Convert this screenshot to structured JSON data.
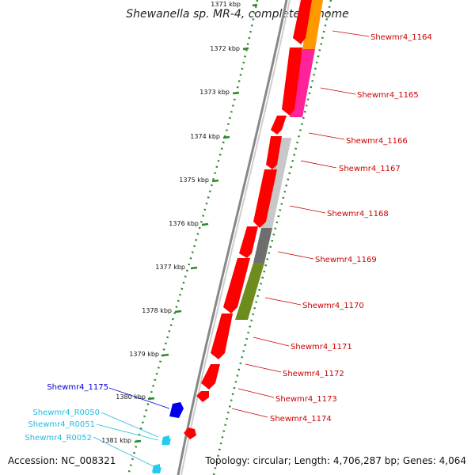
{
  "title": "Shewanella sp. MR-4, complete genome",
  "accession": "Accession: NC_008321",
  "topology": "Topology: circular; Length: 4,706,287 bp; Genes: 4,064",
  "ticks": [
    "1371 kbp",
    "1372 kbp",
    "1373 kbp",
    "1374 kbp",
    "1375 kbp",
    "1376 kbp",
    "1377 kbp",
    "1378 kbp",
    "1379 kbp",
    "1380 kbp",
    "1381 kbp"
  ],
  "genes_right": [
    {
      "label": "Shewmr4_1164",
      "color": "#cc0000"
    },
    {
      "label": "Shewmr4_1165",
      "color": "#cc0000"
    },
    {
      "label": "Shewmr4_1166",
      "color": "#cc0000"
    },
    {
      "label": "Shewmr4_1167",
      "color": "#cc0000"
    },
    {
      "label": "Shewmr4_1168",
      "color": "#cc0000"
    },
    {
      "label": "Shewmr4_1169",
      "color": "#cc0000"
    },
    {
      "label": "Shewmr4_1170",
      "color": "#cc0000"
    },
    {
      "label": "Shewmr4_1171",
      "color": "#cc0000"
    },
    {
      "label": "Shewmr4_1172",
      "color": "#cc0000"
    },
    {
      "label": "Shewmr4_1173",
      "color": "#cc0000"
    },
    {
      "label": "Shewmr4_1174",
      "color": "#cc0000"
    }
  ],
  "genes_left": [
    {
      "label": "Shewmr4_1175",
      "color": "#0000cc"
    },
    {
      "label": "Shewmr4_R0050",
      "color": "#22bbdd"
    },
    {
      "label": "Shewmr4_R0051",
      "color": "#22bbdd"
    },
    {
      "label": "Shewmr4_R0052",
      "color": "#22bbdd"
    }
  ],
  "colors": {
    "cds": "#ff0000",
    "rna": "#22ccee",
    "tick": "#2a8a2a",
    "backbone": "#888888",
    "cog": [
      "#ff9900",
      "#ff2299",
      "#1a1a8c",
      "#c8c8c8",
      "#6e6e6e",
      "#6e8c1e"
    ]
  }
}
